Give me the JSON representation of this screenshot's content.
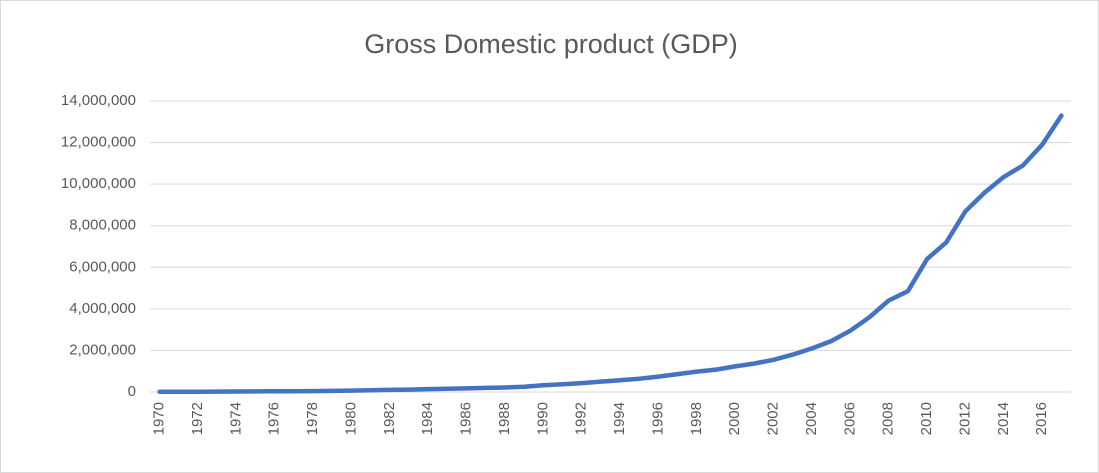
{
  "chart_data": {
    "type": "line",
    "title": "Gross Domestic product (GDP)",
    "categories": [
      "1970",
      null,
      "1972",
      null,
      "1974",
      null,
      "1976",
      null,
      "1978",
      null,
      "1980",
      null,
      "1982",
      null,
      "1984",
      null,
      "1986",
      null,
      "1988",
      null,
      "1990",
      null,
      "1992",
      null,
      "1994",
      null,
      "1996",
      null,
      "1998",
      null,
      "2000",
      null,
      "2002",
      null,
      "2004",
      null,
      "2006",
      null,
      "2008",
      null,
      "2010",
      null,
      "2012",
      null,
      "2014",
      null,
      "2016",
      null
    ],
    "series": [
      {
        "name": "GDP",
        "color": "#4472c4",
        "values": [
          10000,
          12000,
          14000,
          18000,
          25000,
          30000,
          33000,
          38000,
          45000,
          55000,
          65000,
          85000,
          100000,
          115000,
          140000,
          160000,
          175000,
          195000,
          215000,
          250000,
          320000,
          370000,
          430000,
          500000,
          570000,
          640000,
          740000,
          860000,
          980000,
          1080000,
          1230000,
          1370000,
          1550000,
          1800000,
          2100000,
          2450000,
          2950000,
          3600000,
          4400000,
          4850000,
          6400000,
          7200000,
          8700000,
          9600000,
          10350000,
          10900000,
          11900000,
          13300000
        ]
      }
    ],
    "ylim": [
      0,
      14000000
    ],
    "yticks": [
      0,
      {
        "value": 2000000,
        "label": "2,000,000"
      },
      {
        "value": 4000000,
        "label": "4,000,000"
      },
      {
        "value": 6000000,
        "label": "6,000,000"
      },
      {
        "value": 8000000,
        "label": "8,000,000"
      },
      {
        "value": 10000000,
        "label": "10,000,000"
      },
      {
        "value": 12000000,
        "label": "12,000,000"
      },
      {
        "value": 14000000,
        "label": "14,000,000"
      }
    ],
    "grid": true
  }
}
